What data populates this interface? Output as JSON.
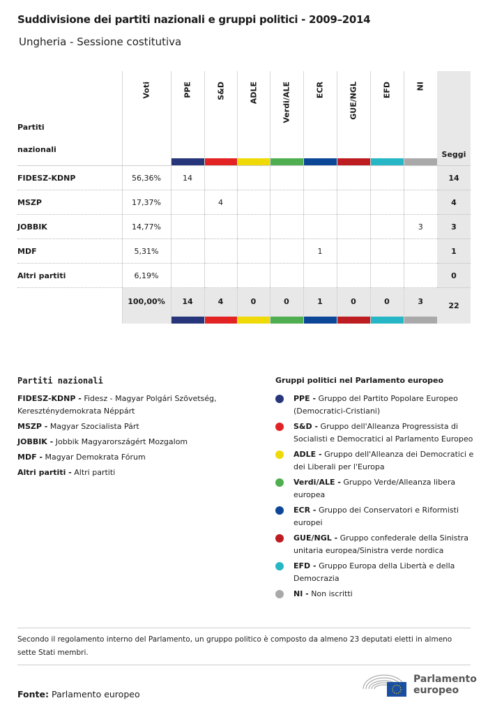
{
  "title": "Suddivisione dei partiti nazionali e gruppi politici - 2009–2014",
  "subtitle": "Ungheria - Sessione costitutiva",
  "table": {
    "party_header": [
      "Partiti",
      "nazionali"
    ],
    "votes_header": "Voti",
    "seats_header": "Seggi",
    "groups": [
      {
        "label": "PPE",
        "color": "#27367a"
      },
      {
        "label": "S&D",
        "color": "#e32224"
      },
      {
        "label": "ADLE",
        "color": "#efd906"
      },
      {
        "label": "Verdi/ALE",
        "color": "#4fae4f"
      },
      {
        "label": "ECR",
        "color": "#0c4697"
      },
      {
        "label": "GUE/NGL",
        "color": "#bd1c20"
      },
      {
        "label": "EFD",
        "color": "#26b6c6"
      },
      {
        "label": "NI",
        "color": "#a9a9a9"
      }
    ],
    "rows": [
      {
        "party": "FIDESZ-KDNP",
        "votes": "56,36%",
        "cells": [
          "14",
          "",
          "",
          "",
          "",
          "",
          "",
          ""
        ],
        "seats": "14"
      },
      {
        "party": "MSZP",
        "votes": "17,37%",
        "cells": [
          "",
          "4",
          "",
          "",
          "",
          "",
          "",
          ""
        ],
        "seats": "4"
      },
      {
        "party": "JOBBIK",
        "votes": "14,77%",
        "cells": [
          "",
          "",
          "",
          "",
          "",
          "",
          "",
          "3"
        ],
        "seats": "3"
      },
      {
        "party": "MDF",
        "votes": "5,31%",
        "cells": [
          "",
          "",
          "",
          "",
          "1",
          "",
          "",
          ""
        ],
        "seats": "1"
      },
      {
        "party": "Altri partiti",
        "votes": "6,19%",
        "cells": [
          "",
          "",
          "",
          "",
          "",
          "",
          "",
          ""
        ],
        "seats": "0"
      }
    ],
    "totals": {
      "votes": "100,00%",
      "cells": [
        "14",
        "4",
        "0",
        "0",
        "1",
        "0",
        "0",
        "3"
      ],
      "seats": "22"
    }
  },
  "legend_parties": {
    "title": "Partiti nazionali",
    "items": [
      {
        "abbr": "FIDESZ-KDNP -",
        "name": "Fidesz - Magyar Polgári Szövetség, Kereszténydemokrata Néppárt"
      },
      {
        "abbr": "MSZP -",
        "name": "Magyar Szocialista Párt"
      },
      {
        "abbr": "JOBBIK -",
        "name": "Jobbik Magyarországért Mozgalom"
      },
      {
        "abbr": "MDF -",
        "name": "Magyar Demokrata Fórum"
      },
      {
        "abbr": "Altri partiti -",
        "name": "Altri partiti"
      }
    ]
  },
  "legend_groups": {
    "title": "Gruppi politici nel Parlamento europeo",
    "items": [
      {
        "abbr": "PPE -",
        "name": "Gruppo del Partito Popolare Europeo (Democratici-Cristiani)",
        "color": "#27367a"
      },
      {
        "abbr": "S&D -",
        "name": "Gruppo dell'Alleanza Progressista di Socialisti e Democratici al Parlamento Europeo",
        "color": "#e32224"
      },
      {
        "abbr": "ADLE -",
        "name": "Gruppo dell'Alleanza dei Democratici e dei Liberali per l'Europa",
        "color": "#efd906"
      },
      {
        "abbr": "Verdi/ALE -",
        "name": "Gruppo Verde/Alleanza libera europea",
        "color": "#4fae4f"
      },
      {
        "abbr": "ECR -",
        "name": "Gruppo dei Conservatori e Riformisti europei",
        "color": "#0c4697"
      },
      {
        "abbr": "GUE/NGL -",
        "name": "Gruppo confederale della Sinistra unitaria europea/Sinistra verde nordica",
        "color": "#bd1c20"
      },
      {
        "abbr": "EFD -",
        "name": "Gruppo Europa della Libertà e della Democrazia",
        "color": "#26b6c6"
      },
      {
        "abbr": "NI -",
        "name": "Non iscritti",
        "color": "#a9a9a9"
      }
    ]
  },
  "note": "Secondo il regolamento interno del Parlamento, un gruppo politico è composto da almeno 23 deputati eletti in almeno sette Stati membri.",
  "source": {
    "label": "Fonte:",
    "value": "Parlamento europeo"
  },
  "logo": {
    "line1": "Parlamento",
    "line2": "europeo"
  }
}
